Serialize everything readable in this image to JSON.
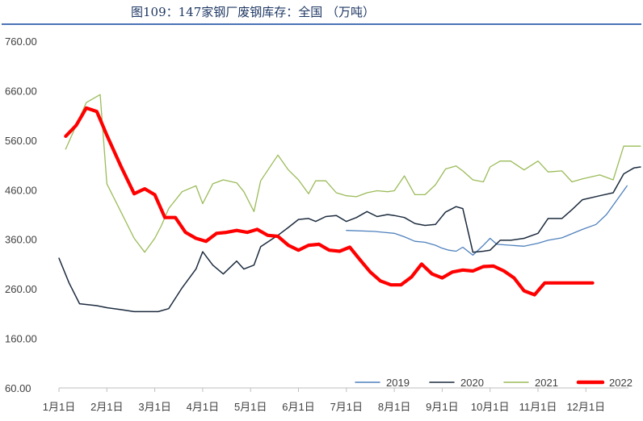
{
  "title": "图109：147家钢厂废钢库存：全国 （万吨）",
  "chart_data": {
    "type": "line",
    "title": "图109：147家钢厂废钢库存：全国 （万吨）",
    "xlabel": "",
    "ylabel": "",
    "ylim": [
      60,
      760
    ],
    "yticks": [
      "60.00",
      "160.00",
      "260.00",
      "360.00",
      "460.00",
      "560.00",
      "660.00",
      "760.00"
    ],
    "categories": [
      "1月1日",
      "2月1日",
      "3月1日",
      "4月1日",
      "5月1日",
      "6月1日",
      "7月1日",
      "8月1日",
      "9月1日",
      "10月1日",
      "11月1日",
      "12月1日"
    ],
    "legend_position": "bottom-right",
    "grid": false,
    "series": [
      {
        "name": "2019",
        "color": "#4f81bd",
        "width": 1.3,
        "x": [
          6.0,
          6.57,
          6.79,
          7.0,
          7.21,
          7.43,
          7.64,
          7.86,
          8.0,
          8.14,
          8.29,
          8.43,
          8.64,
          8.86,
          9.0,
          9.14,
          9.43,
          9.71,
          10.0,
          10.21,
          10.5,
          10.93,
          11.21,
          11.43,
          11.86
        ],
        "y": [
          378,
          376,
          374,
          372,
          365,
          356,
          354,
          348,
          342,
          338,
          336,
          344,
          328,
          348,
          362,
          350,
          348,
          346,
          352,
          358,
          363,
          380,
          390,
          410,
          468
        ]
      },
      {
        "name": "2020",
        "color": "#1c2b3e",
        "width": 1.5,
        "x": [
          0.0,
          0.21,
          0.43,
          0.79,
          1.0,
          1.29,
          1.57,
          1.86,
          2.07,
          2.29,
          2.57,
          2.86,
          3.0,
          3.21,
          3.43,
          3.71,
          3.86,
          4.07,
          4.21,
          4.57,
          4.79,
          5.0,
          5.21,
          5.36,
          5.57,
          5.79,
          6.0,
          6.21,
          6.43,
          6.64,
          6.86,
          7.0,
          7.21,
          7.43,
          7.64,
          7.86,
          8.07,
          8.29,
          8.43,
          8.64,
          8.86,
          9.0,
          9.21,
          9.43,
          9.71,
          10.0,
          10.21,
          10.5,
          10.71,
          10.93,
          11.29,
          11.57,
          11.79,
          12.0,
          12.14
        ],
        "y": [
          322,
          272,
          230,
          226,
          222,
          218,
          214,
          214,
          214,
          220,
          262,
          300,
          335,
          308,
          290,
          316,
          300,
          308,
          345,
          368,
          384,
          400,
          402,
          396,
          406,
          408,
          396,
          404,
          416,
          406,
          410,
          408,
          404,
          392,
          388,
          390,
          415,
          426,
          422,
          334,
          336,
          338,
          358,
          358,
          362,
          372,
          402,
          402,
          420,
          440,
          448,
          454,
          492,
          504,
          506
        ]
      },
      {
        "name": "2021",
        "color": "#9bbb59",
        "width": 1.3,
        "x": [
          0.14,
          0.57,
          0.86,
          1.0,
          1.29,
          1.57,
          1.79,
          2.0,
          2.14,
          2.29,
          2.57,
          2.86,
          3.0,
          3.21,
          3.43,
          3.71,
          3.86,
          4.07,
          4.21,
          4.57,
          4.79,
          5.0,
          5.21,
          5.36,
          5.57,
          5.79,
          6.0,
          6.21,
          6.43,
          6.64,
          6.86,
          7.0,
          7.21,
          7.43,
          7.64,
          7.86,
          8.07,
          8.29,
          8.43,
          8.64,
          8.86,
          9.0,
          9.21,
          9.43,
          9.71,
          10.0,
          10.21,
          10.5,
          10.71,
          10.93,
          11.29,
          11.57,
          11.79,
          12.0,
          12.14
        ],
        "y": [
          542,
          636,
          652,
          472,
          416,
          362,
          334,
          362,
          388,
          422,
          456,
          468,
          432,
          472,
          480,
          474,
          456,
          416,
          478,
          530,
          500,
          480,
          452,
          478,
          478,
          454,
          448,
          446,
          454,
          458,
          456,
          458,
          488,
          450,
          450,
          470,
          502,
          508,
          498,
          480,
          476,
          506,
          518,
          518,
          500,
          518,
          496,
          498,
          476,
          482,
          490,
          480,
          548,
          548,
          548
        ]
      },
      {
        "name": "2022",
        "color": "#ff0000",
        "width": 4.2,
        "x": [
          0.14,
          0.36,
          0.57,
          0.79,
          1.0,
          1.29,
          1.57,
          1.79,
          2.0,
          2.21,
          2.43,
          2.64,
          2.86,
          3.07,
          3.29,
          3.5,
          3.71,
          3.93,
          4.14,
          4.36,
          4.57,
          4.79,
          5.0,
          5.21,
          5.43,
          5.64,
          5.86,
          6.07,
          6.29,
          6.5,
          6.71,
          6.93,
          7.14,
          7.36,
          7.57,
          7.79,
          8.0,
          8.21,
          8.43,
          8.64,
          8.86,
          9.07,
          9.29,
          9.5,
          9.71,
          9.93,
          10.14,
          10.36,
          10.57,
          10.79,
          11.0,
          11.14
        ],
        "y": [
          568,
          590,
          625,
          618,
          570,
          508,
          452,
          462,
          450,
          404,
          404,
          374,
          362,
          356,
          372,
          374,
          378,
          374,
          380,
          368,
          366,
          348,
          338,
          348,
          350,
          338,
          336,
          344,
          318,
          294,
          276,
          268,
          268,
          284,
          310,
          290,
          282,
          294,
          298,
          296,
          305,
          306,
          296,
          282,
          256,
          248,
          272,
          272,
          272,
          272,
          272,
          272
        ]
      }
    ]
  }
}
